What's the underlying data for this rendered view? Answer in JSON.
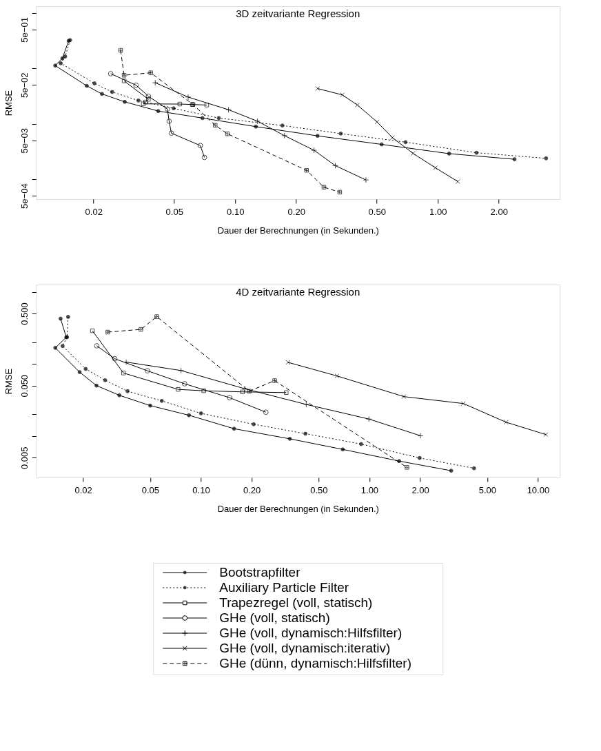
{
  "chart_data": [
    {
      "type": "line",
      "title": "3D zeitvariante Regression",
      "xlabel": "Dauer der Berechnungen (in Sekunden.)",
      "ylabel": "RMSE",
      "log": "xy",
      "grid": false,
      "xlim": [
        0.0104,
        4.0
      ],
      "ylim": [
        0.000435,
        1.32
      ],
      "xticks": [
        {
          "value": 0.02,
          "label": "0.02"
        },
        {
          "value": 0.05,
          "label": "0.05"
        },
        {
          "value": 0.1,
          "label": "0.10"
        },
        {
          "value": 0.2,
          "label": "0.20"
        },
        {
          "value": 0.5,
          "label": "0.50"
        },
        {
          "value": 1,
          "label": "1.00"
        },
        {
          "value": 2,
          "label": "2.00"
        }
      ],
      "yticks": [
        {
          "value": 1,
          "label": null
        },
        {
          "value": 0.5,
          "label": "5e−01"
        },
        {
          "value": 0.1,
          "label": null
        },
        {
          "value": 0.05,
          "label": "5e−02"
        },
        {
          "value": 0.01,
          "label": null
        },
        {
          "value": 0.005,
          "label": "5e−03"
        },
        {
          "value": 0.001,
          "label": null
        },
        {
          "value": 0.0005,
          "label": "5e−04"
        }
      ],
      "series": [
        {
          "color": "#000000",
          "line_style": "solid",
          "marker": "circle",
          "x": [
            0.01507,
            0.01403,
            0.01294,
            0.01852,
            0.022,
            0.0285,
            0.0417,
            0.0689,
            0.1265,
            0.255,
            0.528,
            1.137,
            2.39
          ],
          "values": [
            0.313,
            0.151,
            0.112,
            0.0482,
            0.0344,
            0.0248,
            0.0169,
            0.01264,
            0.00885,
            0.00603,
            0.00423,
            0.00288,
            0.00228
          ]
        },
        {
          "color": "#000000",
          "line_style": "dotted",
          "marker": "circle",
          "x": [
            0.01532,
            0.01449,
            0.01377,
            0.0202,
            0.0247,
            0.0333,
            0.0497,
            0.083,
            0.171,
            0.332,
            0.693,
            1.552,
            3.42
          ],
          "values": [
            0.322,
            0.163,
            0.123,
            0.0534,
            0.0374,
            0.0262,
            0.0189,
            0.01264,
            0.00927,
            0.00662,
            0.00464,
            0.00299,
            0.00237
          ]
        },
        {
          "color": "#000000",
          "line_style": "solid",
          "marker": "square",
          "x": [
            0.0283,
            0.0373,
            0.0361,
            0.0352,
            0.0533,
            0.0614,
            0.0724
          ],
          "values": [
            0.0592,
            0.0275,
            0.0246,
            0.0228,
            0.0226,
            0.0222,
            0.0217
          ]
        },
        {
          "color": "#000000",
          "line_style": "solid",
          "marker": "circle_open",
          "x": [
            0.0243,
            0.0324,
            0.0373,
            0.0463,
            0.0472,
            0.0484,
            0.0673,
            0.0705
          ],
          "values": [
            0.0799,
            0.0496,
            0.0313,
            0.01837,
            0.01109,
            0.00675,
            0.00403,
            0.00246
          ]
        },
        {
          "color": "#000000",
          "line_style": "solid",
          "marker": "plus",
          "x": [
            0.0403,
            0.0586,
            0.0927,
            0.1288,
            0.175,
            0.245,
            0.312,
            0.442
          ],
          "values": [
            0.0549,
            0.0302,
            0.01786,
            0.01109,
            0.00609,
            0.00331,
            0.00175,
            0.000964
          ]
        },
        {
          "color": "#000000",
          "line_style": "solid",
          "marker": "x",
          "x": [
            0.255,
            0.338,
            0.401,
            0.501,
            0.597,
            0.755,
            0.973,
            1.255
          ],
          "values": [
            0.0431,
            0.0331,
            0.0217,
            0.01078,
            0.0056,
            0.00291,
            0.0016,
            0.000902
          ]
        },
        {
          "color": "#000000",
          "line_style": "dashed",
          "marker": "cross",
          "x": [
            0.0272,
            0.0283,
            0.0383,
            0.0619,
            0.0797,
            0.0916,
            0.225,
            0.274,
            0.328
          ],
          "values": [
            0.211,
            0.0748,
            0.0829,
            0.0222,
            0.00937,
            0.00656,
            0.00144,
            0.000714,
            0.000581
          ]
        }
      ]
    },
    {
      "type": "line",
      "title": "4D zeitvariante Regression",
      "xlabel": "Dauer der Berechnungen (in Sekunden.)",
      "ylabel": "RMSE",
      "log": "xy",
      "grid": false,
      "legend": "bottom",
      "xlim": [
        0.0105,
        13.5
      ],
      "ylim": [
        0.00266,
        1.26
      ],
      "xticks": [
        {
          "value": 0.02,
          "label": "0.02"
        },
        {
          "value": 0.05,
          "label": "0.05"
        },
        {
          "value": 0.1,
          "label": "0.10"
        },
        {
          "value": 0.2,
          "label": "0.20"
        },
        {
          "value": 0.5,
          "label": "0.50"
        },
        {
          "value": 1,
          "label": "1.00"
        },
        {
          "value": 2,
          "label": "2.00"
        },
        {
          "value": 5,
          "label": "5.00"
        },
        {
          "value": 10,
          "label": "10.00"
        }
      ],
      "yticks": [
        {
          "value": 1,
          "label": null
        },
        {
          "value": 0.5,
          "label": "0.500"
        },
        {
          "value": 0.2,
          "label": null
        },
        {
          "value": 0.1,
          "label": null
        },
        {
          "value": 0.05,
          "label": "0.050"
        },
        {
          "value": 0.02,
          "label": null
        },
        {
          "value": 0.01,
          "label": null
        },
        {
          "value": 0.005,
          "label": "0.005"
        }
      ],
      "series": [
        {
          "name": "Bootstrapfilter",
          "color": "#000000",
          "line_style": "solid",
          "marker": "circle",
          "x": [
            0.01469,
            0.01589,
            0.01367,
            0.01906,
            0.024,
            0.0328,
            0.05,
            0.0849,
            0.1574,
            0.337,
            0.695,
            1.502,
            3.06
          ],
          "values": [
            0.424,
            0.234,
            0.167,
            0.0769,
            0.05,
            0.0367,
            0.0264,
            0.01941,
            0.01262,
            0.00914,
            0.00652,
            0.00449,
            0.0033
          ]
        },
        {
          "name": "Auxiliary Particle Filter",
          "color": "#000000",
          "line_style": "dotted",
          "marker": "circle",
          "x": [
            0.01629,
            0.01604,
            0.0151,
            0.0207,
            0.027,
            0.0367,
            0.0586,
            0.1002,
            0.2056,
            0.417,
            0.893,
            1.987,
            4.18
          ],
          "values": [
            0.449,
            0.235,
            0.177,
            0.0851,
            0.0594,
            0.0418,
            0.0307,
            0.0206,
            0.01456,
            0.01077,
            0.00774,
            0.00496,
            0.00357
          ]
        },
        {
          "name": "Trapezregel (voll, statisch)",
          "color": "#000000",
          "line_style": "solid",
          "marker": "square",
          "x": [
            0.0227,
            0.0347,
            0.0732,
            0.104,
            0.1766,
            0.321
          ],
          "values": [
            0.288,
            0.0747,
            0.0443,
            0.0424,
            0.0409,
            0.04
          ]
        },
        {
          "name": "GHe (voll, statisch)",
          "color": "#000000",
          "line_style": "solid",
          "marker": "circle_open",
          "x": [
            0.0241,
            0.0308,
            0.0481,
            0.08,
            0.148,
            0.243
          ],
          "values": [
            0.178,
            0.118,
            0.0803,
            0.053,
            0.034,
            0.0214
          ]
        },
        {
          "name": "GHe (voll, dynamisch:Hilfsfilter)",
          "color": "#000000",
          "line_style": "solid",
          "marker": "plus",
          "x": [
            0.036,
            0.0762,
            0.1824,
            0.422,
            0.994,
            2.01
          ],
          "values": [
            0.106,
            0.0809,
            0.0452,
            0.0274,
            0.01718,
            0.01009
          ]
        },
        {
          "name": "GHe (voll, dynamisch:iterativ)",
          "color": "#000000",
          "line_style": "solid",
          "marker": "x",
          "x": [
            0.329,
            0.642,
            1.601,
            3.61,
            6.48,
            11.15
          ],
          "values": [
            0.105,
            0.0681,
            0.0352,
            0.0282,
            0.01553,
            0.01047
          ]
        },
        {
          "name": "GHe (dünn, dynamisch:Hilfsfilter)",
          "color": "#000000",
          "line_style": "dashed",
          "marker": "cross",
          "x": [
            0.028,
            0.044,
            0.0547,
            0.1937,
            0.274,
            1.671
          ],
          "values": [
            0.276,
            0.301,
            0.452,
            0.0418,
            0.0586,
            0.00367
          ]
        }
      ]
    }
  ]
}
